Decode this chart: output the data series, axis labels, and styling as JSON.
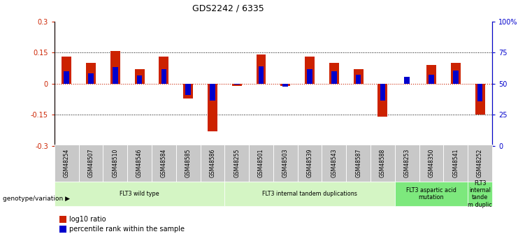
{
  "title": "GDS2242 / 6335",
  "samples": [
    "GSM48254",
    "GSM48507",
    "GSM48510",
    "GSM48546",
    "GSM48584",
    "GSM48585",
    "GSM48586",
    "GSM48255",
    "GSM48501",
    "GSM48503",
    "GSM48539",
    "GSM48543",
    "GSM48587",
    "GSM48588",
    "GSM48253",
    "GSM48350",
    "GSM48541",
    "GSM48252"
  ],
  "log10_ratio": [
    0.13,
    0.1,
    0.16,
    0.07,
    0.13,
    -0.07,
    -0.23,
    -0.01,
    0.14,
    -0.01,
    0.13,
    0.1,
    0.07,
    -0.16,
    0.0,
    0.09,
    0.1,
    -0.15
  ],
  "percentile_rank": [
    0.06,
    0.05,
    0.08,
    0.04,
    0.07,
    -0.055,
    -0.08,
    -0.005,
    0.085,
    -0.015,
    0.07,
    0.06,
    0.045,
    -0.08,
    0.035,
    0.045,
    0.065,
    -0.085
  ],
  "ylim": [
    -0.3,
    0.3
  ],
  "bar_width": 0.4,
  "groups": [
    {
      "label": "FLT3 wild type",
      "start": 0,
      "end": 7,
      "color": "#d4f5c4"
    },
    {
      "label": "FLT3 internal tandem duplications",
      "start": 7,
      "end": 14,
      "color": "#d4f5c4"
    },
    {
      "label": "FLT3 aspartic acid\nmutation",
      "start": 14,
      "end": 17,
      "color": "#7de87d"
    },
    {
      "label": "FLT3\ninternal\ntande\nm duplic",
      "start": 17,
      "end": 18,
      "color": "#7de87d"
    }
  ],
  "bar_color_red": "#cc2200",
  "bar_color_blue": "#0000cc",
  "left_axis_color": "#cc2200",
  "right_axis_color": "#0000cc",
  "genotype_label": "genotype/variation",
  "legend_red": "log10 ratio",
  "legend_blue": "percentile rank within the sample"
}
